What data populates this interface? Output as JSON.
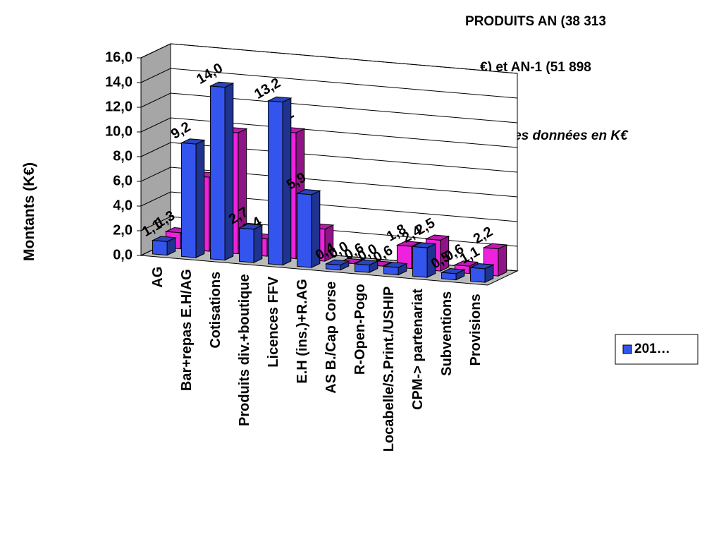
{
  "chart_data": {
    "type": "bar3d",
    "title_lines": [
      "PRODUITS  AN (38 313",
      "€) et AN-1 (51 898",
      "€) ->)"
    ],
    "subtitle": "Affichage des données en K€",
    "y_label": "Montants (K€)",
    "categories": [
      "AG",
      "Bar+repas E.H/AG",
      "Cotisations",
      "Produits div.+boutique",
      "Licences FFV",
      "E.H (ins.)+R.AG",
      "AS B./Cap Corse",
      "R-Open-Pogo",
      "Locabelle/S.Print./USHIP",
      "CPM-> partenariat",
      "Subventions",
      "Provisions"
    ],
    "series": [
      {
        "name": "201…",
        "color": "#3355ee",
        "values": [
          1.1,
          9.2,
          14.0,
          2.7,
          13.2,
          5.9,
          0.4,
          0.6,
          0.6,
          2.4,
          0.5,
          1.1
        ],
        "value_labels": [
          "1,1",
          "9,2",
          "14,0",
          "2,7",
          "13,2",
          "5,9",
          "0,4",
          "0,6",
          "0,6",
          "2,4",
          "0,5",
          "1,1"
        ]
      },
      {
        "color": "#ee22dd",
        "values": [
          1.3,
          6.0,
          9.8,
          1.4,
          10.2,
          2.6,
          0.0,
          0.0,
          1.8,
          2.5,
          0.6,
          2.2
        ],
        "value_labels": [
          "1,3",
          "6,0",
          "9,8",
          "1,4",
          "10,2",
          "2,6",
          "0,0",
          "0,0",
          "1,8",
          "2,5",
          "0,6",
          "2,2"
        ]
      }
    ],
    "ylim": [
      0,
      16
    ],
    "yticks": [
      {
        "value": 0,
        "label": "0,0"
      },
      {
        "value": 2,
        "label": "2,0"
      },
      {
        "value": 4,
        "label": "4,0"
      },
      {
        "value": 6,
        "label": "6,0"
      },
      {
        "value": 8,
        "label": "8,0"
      },
      {
        "value": 10,
        "label": "10,0"
      },
      {
        "value": 12,
        "label": "12,0"
      },
      {
        "value": 14,
        "label": "14,0"
      },
      {
        "value": 16,
        "label": "16,0"
      }
    ],
    "grid": true
  }
}
